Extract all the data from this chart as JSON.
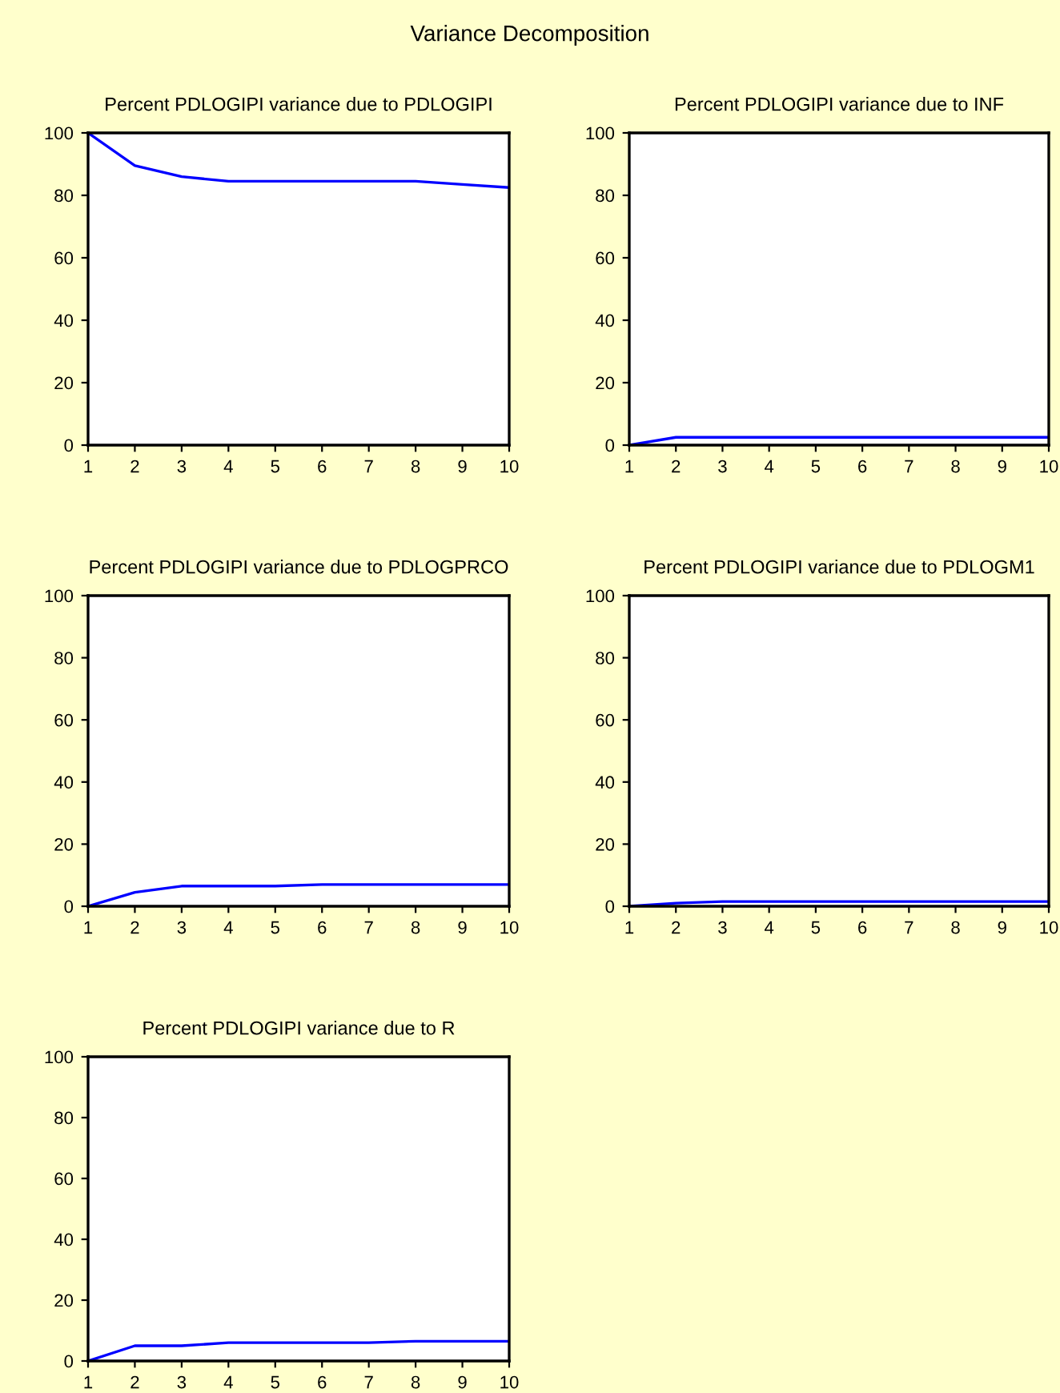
{
  "chart_data": [
    {
      "type": "line",
      "title": "Percent PDLOGIPI variance due to PDLOGIPI",
      "annotations": [
        "Variance Decomposition"
      ],
      "x": [
        1,
        2,
        3,
        4,
        5,
        6,
        7,
        8,
        9,
        10
      ],
      "series": [
        {
          "color": "#0000ff",
          "values": [
            100,
            89.5,
            86,
            84.5,
            84.5,
            84.5,
            84.5,
            84.5,
            83.5,
            82.5
          ]
        }
      ],
      "xlim": [
        1,
        10
      ],
      "xticks": [
        1,
        2,
        3,
        4,
        5,
        6,
        7,
        8,
        9,
        10
      ],
      "ylim": [
        0,
        100
      ],
      "yticks": [
        0,
        20,
        40,
        60,
        80,
        100
      ],
      "grid": false,
      "legend": false
    },
    {
      "type": "line",
      "title": "Percent PDLOGIPI variance due to INF",
      "x": [
        1,
        2,
        3,
        4,
        5,
        6,
        7,
        8,
        9,
        10
      ],
      "series": [
        {
          "color": "#0000ff",
          "values": [
            0,
            2.5,
            2.5,
            2.5,
            2.5,
            2.5,
            2.5,
            2.5,
            2.5,
            2.5
          ]
        }
      ],
      "xlim": [
        1,
        10
      ],
      "xticks": [
        1,
        2,
        3,
        4,
        5,
        6,
        7,
        8,
        9,
        10
      ],
      "ylim": [
        0,
        100
      ],
      "yticks": [
        0,
        20,
        40,
        60,
        80,
        100
      ],
      "grid": false,
      "legend": false
    },
    {
      "type": "line",
      "title": "Percent PDLOGIPI variance due to PDLOGPRCO",
      "x": [
        1,
        2,
        3,
        4,
        5,
        6,
        7,
        8,
        9,
        10
      ],
      "series": [
        {
          "color": "#0000ff",
          "values": [
            0,
            4.5,
            6.5,
            6.5,
            6.5,
            7,
            7,
            7,
            7,
            7
          ]
        }
      ],
      "xlim": [
        1,
        10
      ],
      "xticks": [
        1,
        2,
        3,
        4,
        5,
        6,
        7,
        8,
        9,
        10
      ],
      "ylim": [
        0,
        100
      ],
      "yticks": [
        0,
        20,
        40,
        60,
        80,
        100
      ],
      "grid": false,
      "legend": false
    },
    {
      "type": "line",
      "title": "Percent PDLOGIPI variance due to PDLOGM1",
      "x": [
        1,
        2,
        3,
        4,
        5,
        6,
        7,
        8,
        9,
        10
      ],
      "series": [
        {
          "color": "#0000ff",
          "values": [
            0,
            1,
            1.5,
            1.5,
            1.5,
            1.5,
            1.5,
            1.5,
            1.5,
            1.5
          ]
        }
      ],
      "xlim": [
        1,
        10
      ],
      "xticks": [
        1,
        2,
        3,
        4,
        5,
        6,
        7,
        8,
        9,
        10
      ],
      "ylim": [
        0,
        100
      ],
      "yticks": [
        0,
        20,
        40,
        60,
        80,
        100
      ],
      "grid": false,
      "legend": false
    },
    {
      "type": "line",
      "title": "Percent PDLOGIPI variance due to R",
      "x": [
        1,
        2,
        3,
        4,
        5,
        6,
        7,
        8,
        9,
        10
      ],
      "series": [
        {
          "color": "#0000ff",
          "values": [
            0,
            5,
            5,
            6,
            6,
            6,
            6,
            6.5,
            6.5,
            6.5
          ]
        }
      ],
      "xlim": [
        1,
        10
      ],
      "xticks": [
        1,
        2,
        3,
        4,
        5,
        6,
        7,
        8,
        9,
        10
      ],
      "ylim": [
        0,
        100
      ],
      "yticks": [
        0,
        20,
        40,
        60,
        80,
        100
      ],
      "grid": false,
      "legend": false
    }
  ]
}
